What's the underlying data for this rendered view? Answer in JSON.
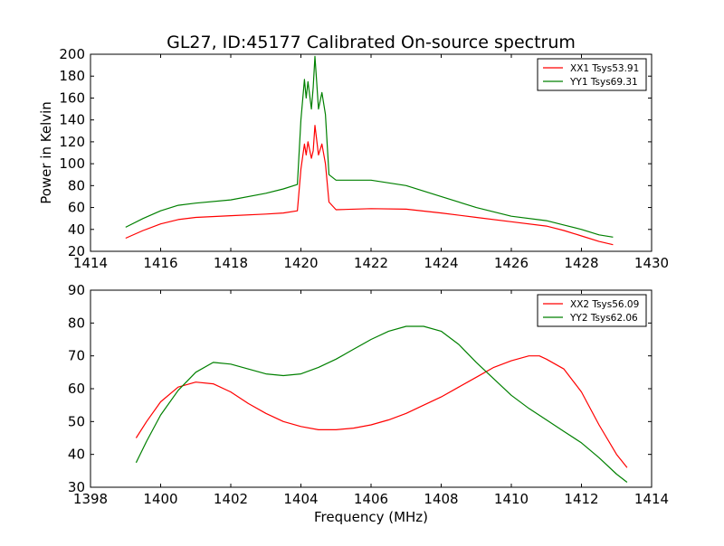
{
  "figure": {
    "title": "GL27, ID:45177 Calibrated On-source spectrum"
  },
  "chart_data": [
    {
      "type": "line",
      "title": "GL27, ID:45177 Calibrated On-source spectrum",
      "xlabel": "",
      "ylabel": "Power in Kelvin",
      "xlim": [
        1414,
        1430
      ],
      "ylim": [
        20,
        200
      ],
      "xticks": [
        "1414",
        "1416",
        "1418",
        "1420",
        "1422",
        "1424",
        "1426",
        "1428",
        "1430"
      ],
      "yticks": [
        "20",
        "40",
        "60",
        "80",
        "100",
        "120",
        "140",
        "160",
        "180",
        "200"
      ],
      "grid": false,
      "legend_position": "top-right",
      "series": [
        {
          "name": "XX1 Tsys53.91",
          "color": "#ff0000",
          "x": [
            1415.0,
            1415.5,
            1416.0,
            1416.5,
            1417.0,
            1418.0,
            1419.0,
            1419.5,
            1419.9,
            1420.0,
            1420.1,
            1420.15,
            1420.2,
            1420.3,
            1420.35,
            1420.4,
            1420.45,
            1420.5,
            1420.6,
            1420.7,
            1420.8,
            1421.0,
            1422.0,
            1423.0,
            1424.0,
            1425.0,
            1426.0,
            1427.0,
            1427.5,
            1428.0,
            1428.5,
            1428.9
          ],
          "y": [
            32,
            39,
            45,
            49,
            51,
            52.5,
            54,
            55,
            57,
            95,
            118,
            108,
            120,
            105,
            112,
            135,
            122,
            108,
            118,
            100,
            65,
            58,
            59,
            58.5,
            55,
            51,
            47,
            43,
            39,
            34,
            29,
            26
          ]
        },
        {
          "name": "YY1 Tsys69.31",
          "color": "#008000",
          "x": [
            1415.0,
            1415.5,
            1416.0,
            1416.5,
            1417.0,
            1418.0,
            1419.0,
            1419.5,
            1419.9,
            1420.0,
            1420.1,
            1420.15,
            1420.2,
            1420.3,
            1420.35,
            1420.4,
            1420.45,
            1420.5,
            1420.6,
            1420.7,
            1420.8,
            1421.0,
            1422.0,
            1423.0,
            1424.0,
            1425.0,
            1426.0,
            1427.0,
            1427.5,
            1428.0,
            1428.5,
            1428.9
          ],
          "y": [
            42,
            50,
            57,
            62,
            64,
            67,
            73,
            77,
            81,
            140,
            177,
            160,
            175,
            150,
            170,
            198,
            175,
            150,
            165,
            145,
            90,
            85,
            85,
            80,
            70,
            60,
            52,
            48,
            44,
            40,
            35,
            33
          ]
        }
      ]
    },
    {
      "type": "line",
      "title": "",
      "xlabel": "Frequency (MHz)",
      "ylabel": "",
      "xlim": [
        1398,
        1414
      ],
      "ylim": [
        30,
        90
      ],
      "xticks": [
        "1398",
        "1400",
        "1402",
        "1404",
        "1406",
        "1408",
        "1410",
        "1412",
        "1414"
      ],
      "yticks": [
        "30",
        "40",
        "50",
        "60",
        "70",
        "80",
        "90"
      ],
      "grid": false,
      "legend_position": "top-right",
      "series": [
        {
          "name": "XX2 Tsys56.09",
          "color": "#ff0000",
          "x": [
            1399.3,
            1399.6,
            1400.0,
            1400.5,
            1401.0,
            1401.5,
            1402.0,
            1402.5,
            1403.0,
            1403.5,
            1404.0,
            1404.5,
            1405.0,
            1405.5,
            1406.0,
            1406.5,
            1407.0,
            1407.5,
            1408.0,
            1408.5,
            1409.0,
            1409.5,
            1410.0,
            1410.5,
            1410.8,
            1411.0,
            1411.5,
            1412.0,
            1412.5,
            1413.0,
            1413.3
          ],
          "y": [
            45,
            50,
            56,
            60.5,
            62,
            61.5,
            59,
            55.5,
            52.5,
            50,
            48.5,
            47.5,
            47.5,
            48,
            49,
            50.5,
            52.5,
            55,
            57.5,
            60.5,
            63.5,
            66.5,
            68.5,
            70,
            70,
            69,
            66,
            59,
            49,
            40,
            36
          ]
        },
        {
          "name": "YY2 Tsys62.06",
          "color": "#008000",
          "x": [
            1399.3,
            1399.6,
            1400.0,
            1400.5,
            1401.0,
            1401.5,
            1402.0,
            1402.5,
            1403.0,
            1403.5,
            1404.0,
            1404.5,
            1405.0,
            1405.5,
            1406.0,
            1406.5,
            1407.0,
            1407.5,
            1408.0,
            1408.5,
            1409.0,
            1409.5,
            1410.0,
            1410.5,
            1411.0,
            1411.5,
            1412.0,
            1412.5,
            1413.0,
            1413.3
          ],
          "y": [
            37.5,
            44,
            52,
            59.5,
            65,
            68,
            67.5,
            66,
            64.5,
            64,
            64.5,
            66.5,
            69,
            72,
            75,
            77.5,
            79,
            79,
            77.5,
            73.5,
            68,
            63,
            58,
            54,
            50.5,
            47,
            43.5,
            39,
            34,
            31.5
          ]
        }
      ]
    }
  ]
}
